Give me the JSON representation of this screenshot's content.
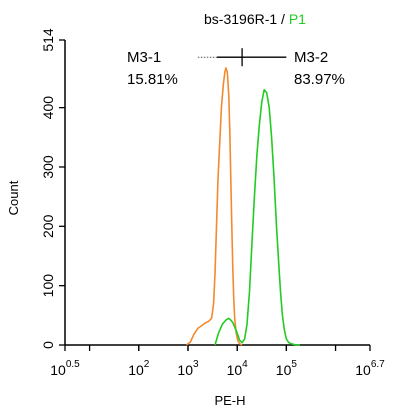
{
  "chart_data": {
    "type": "line",
    "title_sample": "bs-3196R-1",
    "title_sep": " / ",
    "title_gate": "P1",
    "title_gate_color": "#22cc22",
    "xlabel": "PE-H",
    "ylabel": "Count",
    "x_scale": "log",
    "xlim": [
      0.5,
      6.7
    ],
    "ylim": [
      0,
      514
    ],
    "x_ticks": [
      {
        "base": "10",
        "exp": "0.5",
        "value": 0.5
      },
      {
        "base": "10",
        "exp": "2",
        "value": 2
      },
      {
        "base": "10",
        "exp": "3",
        "value": 3
      },
      {
        "base": "10",
        "exp": "4",
        "value": 4
      },
      {
        "base": "10",
        "exp": "5",
        "value": 5
      },
      {
        "base": "10",
        "exp": "6.7",
        "value": 6.7
      }
    ],
    "y_ticks": [
      "0",
      "100",
      "200",
      "300",
      "400",
      "514"
    ],
    "grid": false,
    "series": [
      {
        "color": "#f28a2e",
        "x": [
          2.97,
          3.05,
          3.12,
          3.2,
          3.27,
          3.35,
          3.42,
          3.48,
          3.52,
          3.55,
          3.58,
          3.61,
          3.65,
          3.68,
          3.72,
          3.75,
          3.77,
          3.8,
          3.83,
          3.85,
          3.87,
          3.89,
          3.91,
          3.93,
          3.95,
          3.98,
          4.01,
          4.05,
          4.1
        ],
        "y": [
          0,
          5,
          18,
          28,
          32,
          37,
          40,
          45,
          70,
          120,
          200,
          280,
          350,
          400,
          440,
          460,
          467,
          460,
          420,
          360,
          280,
          200,
          130,
          80,
          45,
          20,
          8,
          2,
          0
        ]
      },
      {
        "color": "#22cc22",
        "x": [
          3.55,
          3.62,
          3.7,
          3.77,
          3.83,
          3.87,
          3.91,
          3.95,
          4.0,
          4.05,
          4.1,
          4.15,
          4.2,
          4.25,
          4.3,
          4.35,
          4.4,
          4.45,
          4.5,
          4.55,
          4.6,
          4.65,
          4.7,
          4.75,
          4.8,
          4.85,
          4.88,
          4.92,
          4.96,
          5.0,
          5.05,
          5.1,
          5.15,
          5.2,
          5.28
        ],
        "y": [
          0,
          20,
          35,
          42,
          45,
          42,
          38,
          30,
          20,
          8,
          4,
          10,
          35,
          90,
          170,
          250,
          320,
          370,
          410,
          430,
          425,
          400,
          350,
          280,
          200,
          130,
          90,
          50,
          25,
          10,
          4,
          2,
          1,
          0,
          0
        ]
      }
    ],
    "gates": [
      {
        "name": "M3-1",
        "percent": "15.81%"
      },
      {
        "name": "M3-2",
        "percent": "83.97%"
      }
    ],
    "gate_line": {
      "y": 485,
      "x_start": 3.2,
      "x_divider": 4.1,
      "x_end": 5.0
    }
  }
}
